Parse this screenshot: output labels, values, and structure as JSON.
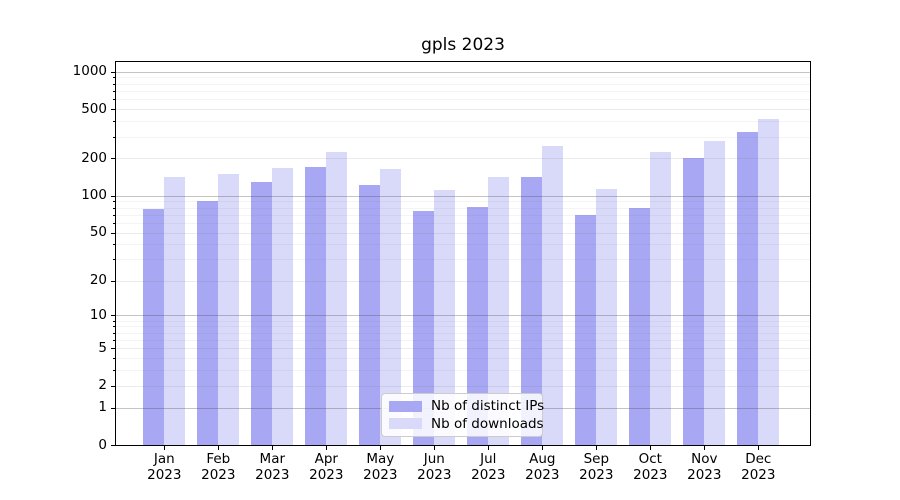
{
  "chart_data": {
    "type": "bar",
    "title": "gpls 2023",
    "categories": [
      "Jan",
      "Feb",
      "Mar",
      "Apr",
      "May",
      "Jun",
      "Jul",
      "Aug",
      "Sep",
      "Oct",
      "Nov",
      "Dec"
    ],
    "x_tick_second_line": "2023",
    "series": [
      {
        "name": "Nb of distinct IPs",
        "color": "#a7a7f3",
        "values": [
          78,
          90,
          130,
          170,
          122,
          75,
          81,
          142,
          70,
          80,
          202,
          330
        ]
      },
      {
        "name": "Nb of downloads",
        "color": "#d9d9fa",
        "values": [
          142,
          150,
          167,
          227,
          165,
          111,
          141,
          251,
          113,
          224,
          277,
          420
        ]
      }
    ],
    "yscale": "log1p",
    "yticks": [
      0,
      1,
      2,
      5,
      10,
      20,
      50,
      100,
      200,
      500,
      1000
    ],
    "y_tick_labels": [
      "0",
      "1",
      "2",
      "5",
      "10",
      "20",
      "50",
      "100",
      "200",
      "500",
      "1000"
    ],
    "minor_yticks": [
      3,
      4,
      6,
      7,
      8,
      9,
      30,
      40,
      60,
      70,
      80,
      90,
      300,
      400,
      600,
      700,
      800,
      900
    ],
    "ylim": [
      0,
      1200
    ],
    "grid": "on",
    "legend_position": "lower center"
  }
}
